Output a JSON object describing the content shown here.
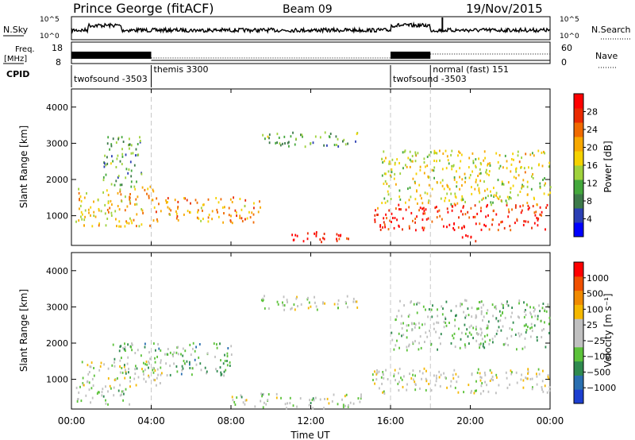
{
  "header": {
    "title": "Prince George (fitACF)",
    "beam": "Beam 09",
    "date": "19/Nov/2015"
  },
  "top_panels": {
    "nsky_label": "N.Sky",
    "nsky_ticks": [
      "10^5",
      "10^0"
    ],
    "nsearch_label": "N.Search",
    "nsearch_ticks": [
      "10^5",
      "10^0"
    ],
    "freq_label_1": "Freq.",
    "freq_label_2": "[MHz]",
    "freq_ticks": [
      "18",
      "8"
    ],
    "nave_label": "Nave",
    "nave_ticks": [
      "60",
      "0"
    ],
    "cpid_label": "CPID"
  },
  "cpid_modes": [
    {
      "name": "twofsound -3503",
      "start_h": 0
    },
    {
      "name": "themis 3300",
      "start_h": 4
    },
    {
      "name": "twofsound -3503",
      "start_h": 16
    },
    {
      "name": "normal (fast) 151",
      "start_h": 18
    }
  ],
  "x_axis": {
    "label": "Time UT",
    "ticks": [
      "00:00",
      "04:00",
      "08:00",
      "12:00",
      "16:00",
      "20:00",
      "00:00"
    ],
    "range_h": [
      0,
      24
    ]
  },
  "panels": [
    {
      "id": "power",
      "ylabel": "Slant Range [km]",
      "yticks": [
        "4000",
        "3000",
        "2000",
        "1000"
      ],
      "yrange_km": [
        180,
        4500
      ],
      "colorbar_label": "Power [dB]",
      "colorbar_ticks": [
        "28",
        "24",
        "20",
        "16",
        "12",
        "8",
        "4"
      ],
      "colors": [
        "#0000ff",
        "#2b3fb4",
        "#3d7a4a",
        "#44a83c",
        "#9fd23c",
        "#f5d200",
        "#f7a800",
        "#f06a00",
        "#ea2a00",
        "#ff0000"
      ]
    },
    {
      "id": "velocity",
      "ylabel": "Slant Range [km]",
      "yticks": [
        "4000",
        "3000",
        "2000",
        "1000"
      ],
      "yrange_km": [
        180,
        4500
      ],
      "colorbar_label": "Velocity [m s⁻¹]",
      "colorbar_ticks": [
        "1000",
        "500",
        "100",
        "25",
        "−25",
        "−100",
        "−500",
        "−1000"
      ],
      "colors": [
        "#1c3fd0",
        "#2a6fb0",
        "#2f8a4f",
        "#5cc23a",
        "#c0c0c0",
        "#c0c0c0",
        "#f5b800",
        "#f08a00",
        "#f05000",
        "#ff0000"
      ]
    }
  ],
  "chart_data": {
    "type": "heatmap",
    "title": "Prince George (fitACF)",
    "subtitle": "Beam 09 19/Nov/2015",
    "xlabel": "Time UT",
    "ylabel": "Slant Range [km]",
    "x_range_h": [
      0,
      24
    ],
    "y_range_km": [
      180,
      4500
    ],
    "series": [
      {
        "name": "Power [dB]",
        "scale": [
          0,
          30
        ],
        "echo_regions": [
          {
            "t0": 0.2,
            "t1": 4.2,
            "r0": 700,
            "r1": 1800,
            "level": 18
          },
          {
            "t0": 1.5,
            "t1": 3.5,
            "r0": 1800,
            "r1": 3200,
            "level": 10
          },
          {
            "t0": 4.2,
            "t1": 9.5,
            "r0": 800,
            "r1": 1500,
            "level": 20
          },
          {
            "t0": 9.5,
            "t1": 14.5,
            "r0": 2900,
            "r1": 3300,
            "level": 10
          },
          {
            "t0": 10.5,
            "t1": 14.0,
            "r0": 250,
            "r1": 550,
            "level": 28
          },
          {
            "t0": 15.0,
            "t1": 24.0,
            "r0": 600,
            "r1": 1300,
            "level": 26
          },
          {
            "t0": 15.5,
            "t1": 24.0,
            "r0": 1300,
            "r1": 2800,
            "level": 16
          },
          {
            "t0": 19.5,
            "t1": 20.3,
            "r0": 250,
            "r1": 700,
            "level": 30
          }
        ]
      },
      {
        "name": "Velocity [m s⁻¹]",
        "scale": [
          -1000,
          1000
        ],
        "echo_regions": [
          {
            "t0": 0.2,
            "t1": 3.0,
            "r0": 300,
            "r1": 800,
            "level": -150
          },
          {
            "t0": 0.5,
            "t1": 4.5,
            "r0": 800,
            "r1": 1500,
            "level": 0
          },
          {
            "t0": 2.0,
            "t1": 8.0,
            "r0": 1100,
            "r1": 2000,
            "level": -300
          },
          {
            "t0": 8.0,
            "t1": 14.5,
            "r0": 200,
            "r1": 600,
            "level": -80
          },
          {
            "t0": 9.5,
            "t1": 14.5,
            "r0": 2900,
            "r1": 3300,
            "level": 0
          },
          {
            "t0": 15.0,
            "t1": 24.0,
            "r0": 600,
            "r1": 1300,
            "level": 0
          },
          {
            "t0": 16.0,
            "t1": 24.0,
            "r0": 1800,
            "r1": 3200,
            "level": -200
          }
        ]
      }
    ]
  }
}
